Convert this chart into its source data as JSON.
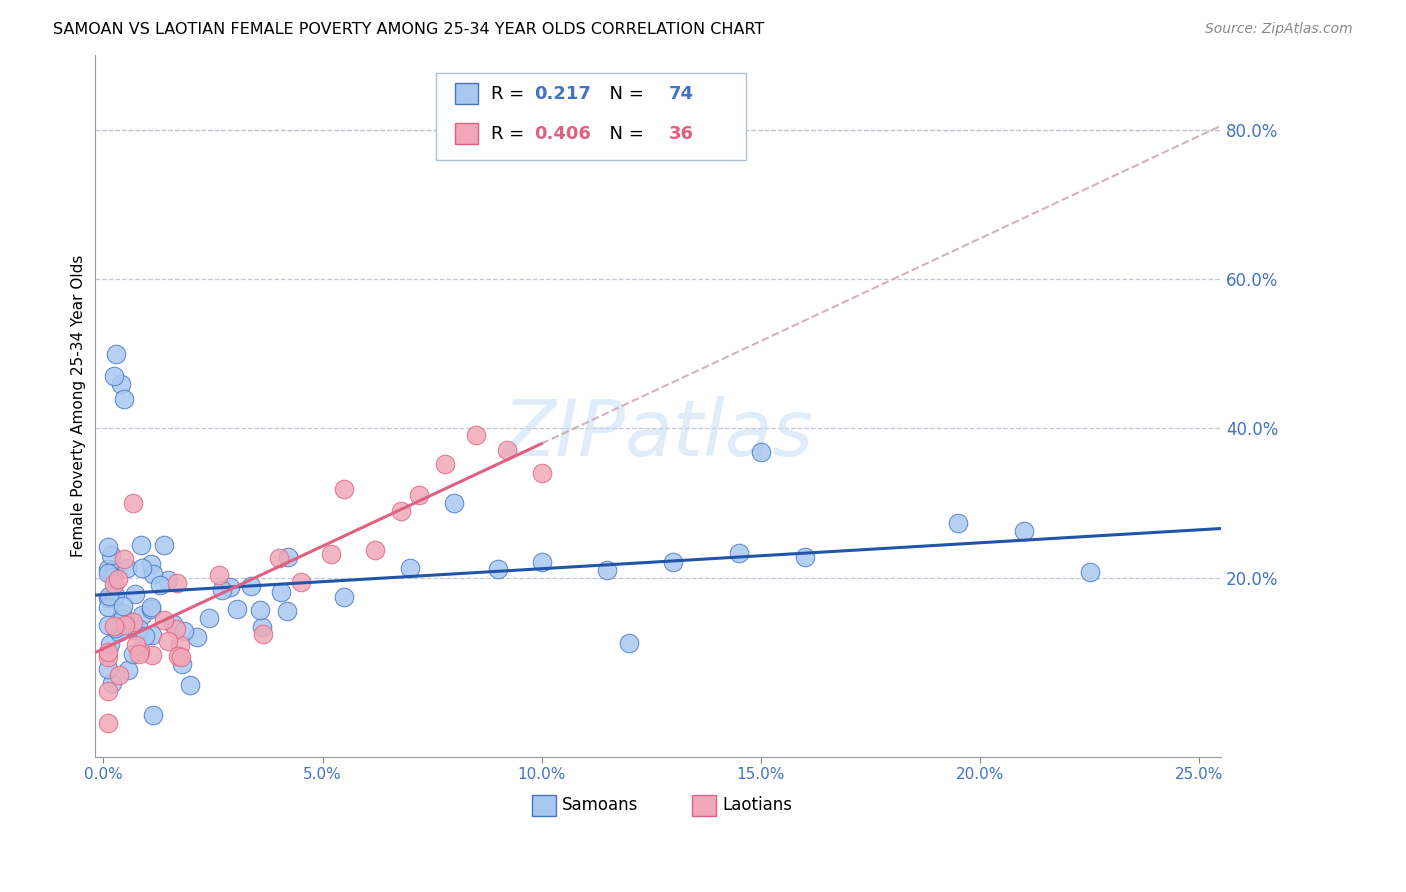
{
  "title": "SAMOAN VS LAOTIAN FEMALE POVERTY AMONG 25-34 YEAR OLDS CORRELATION CHART",
  "source": "Source: ZipAtlas.com",
  "ylabel": "Female Poverty Among 25-34 Year Olds",
  "ytick_labels": [
    "20.0%",
    "40.0%",
    "60.0%",
    "80.0%"
  ],
  "ytick_values": [
    0.2,
    0.4,
    0.6,
    0.8
  ],
  "xtick_labels": [
    "0.0%",
    "5.0%",
    "10.0%",
    "15.0%",
    "20.0%",
    "25.0%"
  ],
  "xtick_values": [
    0.0,
    0.05,
    0.1,
    0.15,
    0.2,
    0.25
  ],
  "xlim": [
    -0.002,
    0.255
  ],
  "ylim": [
    -0.04,
    0.9
  ],
  "samoan_color": "#a8c8f0",
  "laotian_color": "#f0a8b8",
  "samoan_edge_color": "#4472c4",
  "laotian_edge_color": "#e06080",
  "samoan_line_color": "#2255aa",
  "laotian_line_color": "#e06080",
  "laotian_dash_color": "#c8a0a8",
  "legend_R_samoan": "0.217",
  "legend_N_samoan": "74",
  "legend_R_laotian": "0.406",
  "legend_N_laotian": "36",
  "watermark_text": "ZIPatlas",
  "samoan_seed": 42,
  "laotian_seed": 99,
  "background_color": "#ffffff",
  "grid_color": "#c0c8d8",
  "tick_color": "#4472c4"
}
